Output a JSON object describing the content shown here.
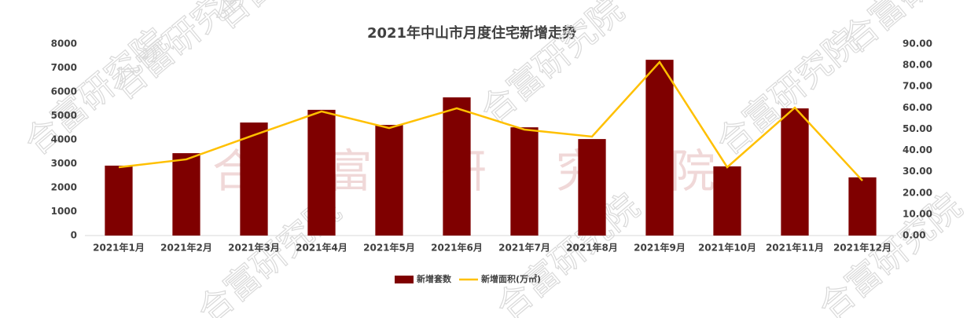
{
  "chart_data": {
    "type": "bar",
    "title": "2021年中山市月度住宅新增走势",
    "watermark": "合富研究院",
    "categories": [
      "2021年1月",
      "2021年2月",
      "2021年3月",
      "2021年4月",
      "2021年5月",
      "2021年6月",
      "2021年7月",
      "2021年8月",
      "2021年9月",
      "2021年10月",
      "2021年11月",
      "2021年12月"
    ],
    "series": [
      {
        "name": "新增套数",
        "type": "bar",
        "color": "#7f0000",
        "values": [
          2920,
          3440,
          4720,
          5250,
          4620,
          5770,
          4520,
          4030,
          7340,
          2890,
          5310,
          2430
        ]
      },
      {
        "name": "新增面积(万㎡)",
        "type": "line",
        "axis": "y2",
        "color": "#ffc000",
        "values": [
          32.1,
          35.8,
          47.2,
          58.3,
          50.5,
          59.8,
          49.8,
          46.5,
          81.5,
          32.1,
          60.1,
          25.8
        ]
      }
    ],
    "ylim": [
      0,
      8000
    ],
    "yticks": [
      0,
      1000,
      2000,
      3000,
      4000,
      5000,
      6000,
      7000,
      8000
    ],
    "y2lim": [
      0,
      90
    ],
    "y2ticks": [
      {
        "value": 0,
        "label": "0.00"
      },
      {
        "value": 10,
        "label": "10.00"
      },
      {
        "value": 20,
        "label": "20.00"
      },
      {
        "value": 30,
        "label": "30.00"
      },
      {
        "value": 40,
        "label": "40.00"
      },
      {
        "value": 50,
        "label": "50.00"
      },
      {
        "value": 60,
        "label": "60.00"
      },
      {
        "value": 70,
        "label": "70.00"
      },
      {
        "value": 80,
        "label": "80.00"
      },
      {
        "value": 90,
        "label": "90.00"
      }
    ],
    "legend": "bottom"
  }
}
